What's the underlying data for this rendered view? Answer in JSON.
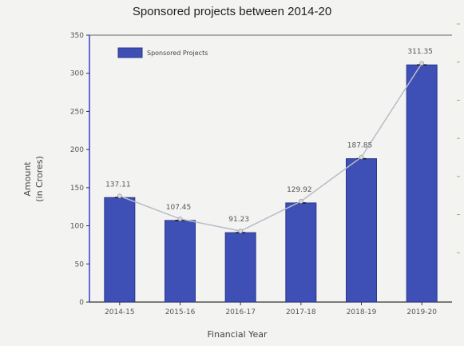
{
  "chart_data": {
    "type": "bar",
    "title": "Sponsored projects between 2014-20",
    "xlabel": "Financial Year",
    "ylabel": "Amount (in Crores)",
    "categories": [
      "2014-15",
      "2015-16",
      "2016-17",
      "2017-18",
      "2018-19",
      "2019-20"
    ],
    "values": [
      137,
      107,
      91,
      130,
      188,
      311
    ],
    "data_labels": [
      "137.11",
      "107.45",
      "91.23",
      "129.92",
      "187.85",
      "311.35"
    ],
    "ylim": [
      0,
      350
    ],
    "yticks": [
      0,
      50,
      100,
      150,
      200,
      250,
      300,
      350
    ],
    "grid": false,
    "legend": {
      "position": "top-left",
      "entries": [
        {
          "label": "Sponsored Projects",
          "color": "#3e4fb5"
        }
      ]
    },
    "colors": {
      "bar": "#3e4fb5",
      "bar_edge": "#2b378a",
      "line": "#b8bcc8",
      "left_axis": "#3a3ad0"
    }
  }
}
